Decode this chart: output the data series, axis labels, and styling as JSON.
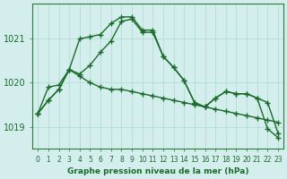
{
  "title": "Graphe pression niveau de la mer (hPa)",
  "background_color": "#d4eeee",
  "grid_color": "#aaddcc",
  "line_color": "#1a6b2a",
  "x_labels": [
    "0",
    "1",
    "2",
    "3",
    "4",
    "5",
    "6",
    "7",
    "8",
    "9",
    "10",
    "11",
    "12",
    "13",
    "14",
    "15",
    "16",
    "17",
    "18",
    "19",
    "20",
    "21",
    "22",
    "23"
  ],
  "series1": [
    1019.3,
    1019.6,
    1019.85,
    1020.3,
    1020.2,
    1020.4,
    1020.7,
    1020.95,
    1021.4,
    1021.45,
    1021.15,
    1021.15,
    1020.6,
    1020.35,
    1020.05,
    1019.55,
    1019.45,
    1019.65,
    1019.8,
    1019.75,
    1019.75,
    1019.65,
    1019.55,
    1018.85
  ],
  "series2": [
    1019.3,
    1019.9,
    1019.95,
    1020.3,
    1020.15,
    1020.0,
    1019.9,
    1019.85,
    1019.85,
    1019.8,
    1019.75,
    1019.7,
    1019.65,
    1019.6,
    1019.55,
    1019.5,
    1019.45,
    1019.4,
    1019.35,
    1019.3,
    1019.25,
    1019.2,
    1019.15,
    1019.1
  ],
  "series3": [
    1019.3,
    1019.6,
    1019.85,
    1020.3,
    1021.0,
    1021.05,
    1021.1,
    1021.35,
    1021.5,
    1021.5,
    1021.2,
    1021.2,
    1020.6,
    1020.35,
    1020.05,
    1019.55,
    1019.45,
    1019.65,
    1019.8,
    1019.75,
    1019.75,
    1019.65,
    1018.95,
    1018.75
  ],
  "ylim": [
    1018.5,
    1021.8
  ],
  "yticks": [
    1019,
    1020,
    1021
  ],
  "figsize": [
    3.2,
    2.0
  ],
  "dpi": 100
}
